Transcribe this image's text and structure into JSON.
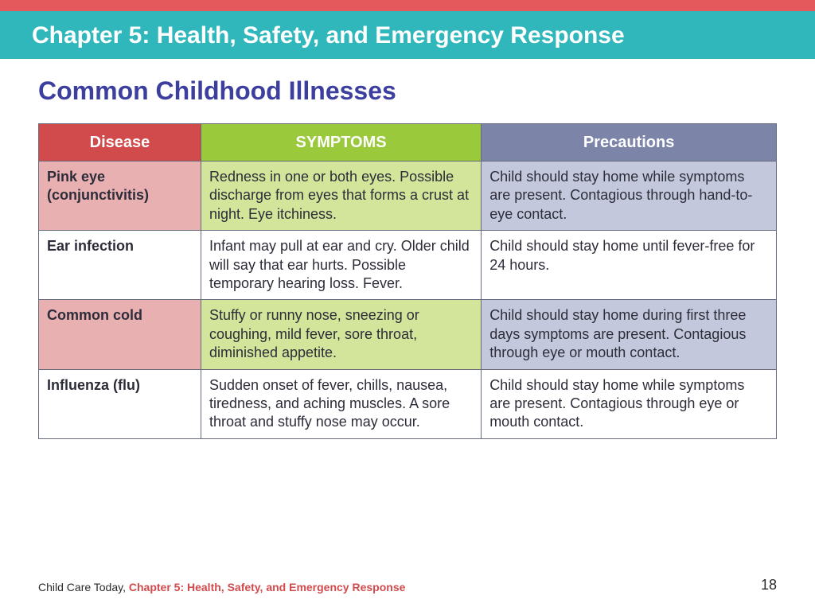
{
  "colors": {
    "topbar": "#e45a5c",
    "titlebar_bg": "#2fb7bb",
    "titlebar_text": "#ffffff",
    "subtitle": "#3c3f9e",
    "th_disease": "#d14a4c",
    "th_symptoms": "#9bc93c",
    "th_precautions": "#7c84a8",
    "row_odd_disease": "#e9b0b2",
    "row_odd_symptoms": "#d2e59a",
    "row_odd_precautions": "#c3c8dc",
    "row_even": "#ffffff",
    "cell_text": "#2d2d3a",
    "footer_accent": "#d14a4c"
  },
  "header": {
    "chapter_title": "Chapter 5: Health, Safety, and Emergency Response"
  },
  "subtitle": "Common Childhood Illnesses",
  "table": {
    "columns": [
      "Disease",
      "SYMPTOMS",
      "Precautions"
    ],
    "header_labels": {
      "disease": "Disease",
      "symptoms": "SYMPTOMS",
      "precautions": "Precautions"
    },
    "rows": [
      {
        "disease": "Pink eye (conjunctivitis)",
        "symptoms": "Redness in one or both eyes. Possible discharge from eyes that forms a crust at night. Eye itchiness.",
        "precautions": "Child should stay home while symptoms are present. Contagious through hand-to-eye contact."
      },
      {
        "disease": "Ear infection",
        "symptoms": "Infant may pull at ear and cry. Older child will say that ear hurts. Possible temporary hearing loss. Fever.",
        "precautions": "Child should stay home until fever-free for 24 hours."
      },
      {
        "disease": "Common cold",
        "symptoms": "Stuffy or runny nose, sneezing or coughing, mild fever, sore throat, diminished appetite.",
        "precautions": "Child should stay home during first three days symptoms are present. Contagious through eye or mouth contact."
      },
      {
        "disease": "Influenza (flu)",
        "symptoms": "Sudden onset of fever, chills, nausea, tiredness, and aching muscles. A sore throat and stuffy nose may occur.",
        "precautions": "Child should stay home while symptoms are present. Contagious through eye or mouth contact."
      }
    ]
  },
  "footer": {
    "source": "Child Care Today, ",
    "chapter_ref": "Chapter 5: Health, Safety, and Emergency Response",
    "page_number": "18"
  }
}
